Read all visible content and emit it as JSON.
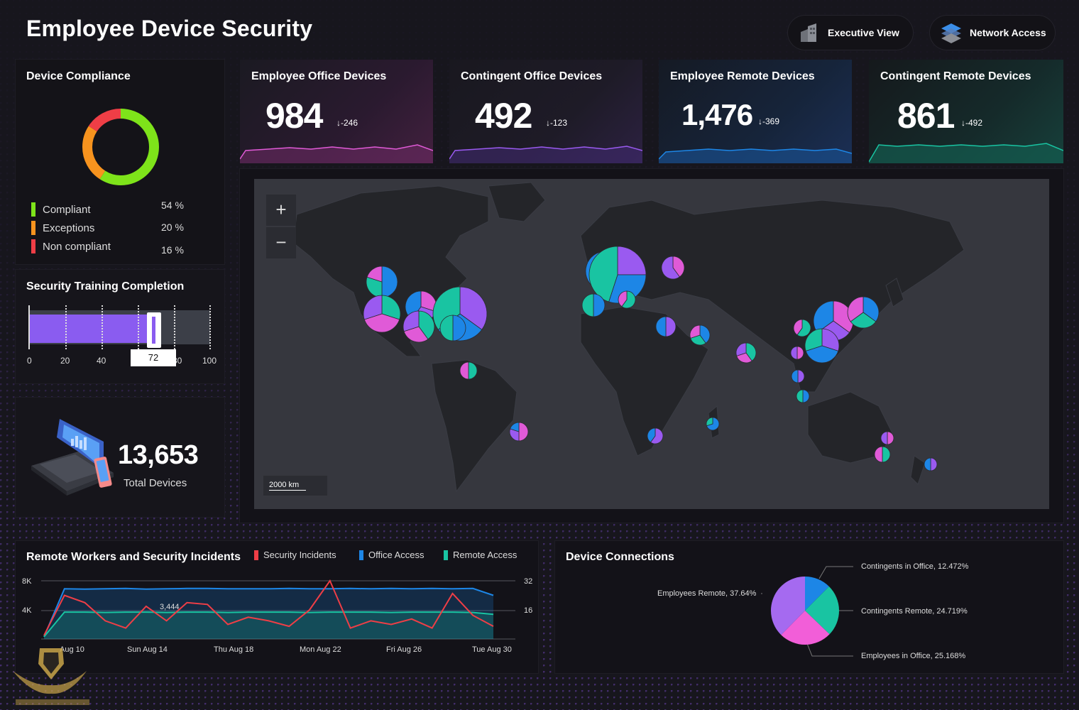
{
  "title": "Employee Device Security",
  "header_buttons": [
    {
      "label": "Executive View"
    },
    {
      "label": "Network Access"
    }
  ],
  "device_compliance": {
    "title": "Device Compliance",
    "items": [
      {
        "label": "Compliant",
        "pct": "54 %",
        "color": "#7ee31a"
      },
      {
        "label": "Exceptions",
        "pct": "20 %",
        "color": "#f7931e"
      },
      {
        "label": "Non compliant",
        "pct": "16 %",
        "color": "#ef3e46"
      }
    ]
  },
  "training": {
    "title": "Security Training Completion",
    "value": 72,
    "value_label": "72",
    "ticks": [
      "0",
      "20",
      "40",
      "60",
      "80",
      "100"
    ]
  },
  "total_devices": {
    "value": "13,653",
    "label": "Total Devices"
  },
  "kpis": [
    {
      "title": "Employee Office Devices",
      "value": "984",
      "delta": "-246",
      "color": "#e05ad7"
    },
    {
      "title": "Contingent Office Devices",
      "value": "492",
      "delta": "-123",
      "color": "#9a5af0"
    },
    {
      "title": "Employee Remote Devices",
      "value": "1,476",
      "delta": "-369",
      "color": "#1d86e6"
    },
    {
      "title": "Contingent Remote Devices",
      "value": "861",
      "delta": "-492",
      "color": "#19c4a2"
    }
  ],
  "map": {
    "zoom_in": "+",
    "zoom_out": "−",
    "scale": "2000 km",
    "colors": {
      "office": "#1d86e6",
      "remote": "#19c4a2",
      "employee": "#e05ad7",
      "contingent": "#9a5af0"
    }
  },
  "remote_workers": {
    "title": "Remote Workers and Security Incidents",
    "legend": [
      {
        "label": "Security Incidents",
        "color": "#ef3e46"
      },
      {
        "label": "Office Access",
        "color": "#1d86e6"
      },
      {
        "label": "Remote Access",
        "color": "#19c4a2"
      }
    ],
    "y_left": [
      "8K",
      "4K",
      "0"
    ],
    "y_right": [
      "32",
      "16"
    ],
    "x_labels": [
      "Aug 10",
      "Sun Aug 14",
      "Thu Aug 18",
      "Mon Aug 22",
      "Fri Aug 26",
      "Tue Aug 30"
    ],
    "annotation": "3,444"
  },
  "chart_data": {
    "type": "line",
    "title": "Remote Workers and Security Incidents",
    "x": [
      "Aug 8",
      "Aug 9",
      "Aug 10",
      "Aug 11",
      "Aug 12",
      "Aug 13",
      "Aug 14",
      "Aug 15",
      "Aug 16",
      "Aug 17",
      "Aug 18",
      "Aug 19",
      "Aug 20",
      "Aug 21",
      "Aug 22",
      "Aug 23",
      "Aug 24",
      "Aug 25",
      "Aug 26",
      "Aug 27",
      "Aug 28",
      "Aug 29",
      "Aug 30"
    ],
    "series": [
      {
        "name": "Office Access",
        "axis": "left",
        "values": [
          300,
          6900,
          6850,
          6900,
          6950,
          6850,
          6900,
          6950,
          6950,
          6900,
          6900,
          6900,
          6950,
          6900,
          6900,
          6950,
          6900,
          6950,
          6900,
          6950,
          6900,
          6950,
          6000
        ]
      },
      {
        "name": "Remote Access",
        "axis": "left",
        "values": [
          300,
          3700,
          3700,
          3650,
          3700,
          3700,
          3650,
          3700,
          3700,
          3650,
          3700,
          3700,
          3700,
          3650,
          3700,
          3700,
          3700,
          3650,
          3700,
          3700,
          3700,
          3650,
          3400
        ]
      },
      {
        "name": "Security Incidents",
        "axis": "right",
        "values": [
          2,
          24,
          20,
          10,
          6,
          18,
          10,
          20,
          19,
          8,
          12,
          10,
          7,
          16,
          32,
          6,
          10,
          8,
          11,
          6,
          25,
          13,
          7
        ]
      }
    ],
    "ylim_left": [
      0,
      8000
    ],
    "ylim_right": [
      0,
      32
    ]
  },
  "device_connections": {
    "title": "Device Connections",
    "slices": [
      {
        "label": "Contingents in Office, 12.472%",
        "value": 12.472,
        "color": "#1d86e6"
      },
      {
        "label": "Contingents Remote, 24.719%",
        "value": 24.719,
        "color": "#19c4a2"
      },
      {
        "label": "Employees in Office, 25.168%",
        "value": 25.168,
        "color": "#f25ed8"
      },
      {
        "label": "Employees Remote, 37.64%",
        "value": 37.64,
        "color": "#a56af0"
      }
    ]
  }
}
